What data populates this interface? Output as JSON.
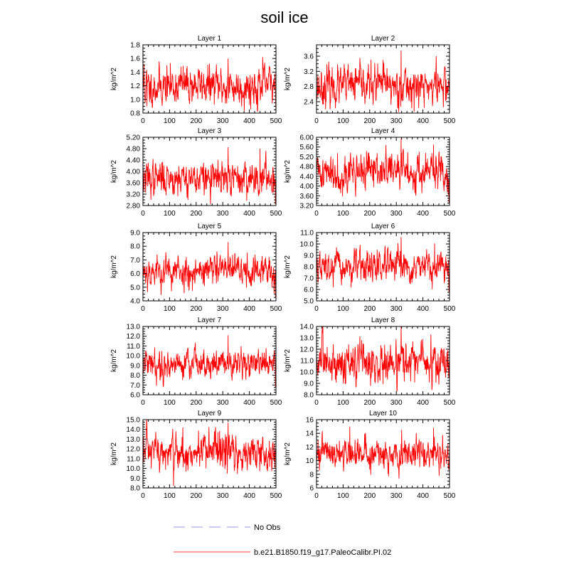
{
  "title": "soil ice",
  "colors": {
    "model": "#ff0000",
    "obs": "#aaaaee",
    "axis": "#000000"
  },
  "legend": [
    {
      "label": "No Obs",
      "style": "dashed",
      "color": "#aaaaee"
    },
    {
      "label": "b.e21.B1850.f19_g17.PaleoCalibr.PI.02",
      "style": "solid",
      "color": "#ff6666"
    }
  ],
  "chart_data": [
    {
      "type": "line",
      "title": "Layer 1",
      "ylabel": "kg/m^2",
      "xlim": [
        0,
        500
      ],
      "xticks": [
        0,
        100,
        200,
        300,
        400,
        500
      ],
      "ylim": [
        0.8,
        1.8
      ],
      "yticks": [
        "0.8",
        "1.0",
        "1.2",
        "1.4",
        "1.6",
        "1.8"
      ],
      "mean": 1.2,
      "amp": 0.14,
      "spikes": [
        [
          4,
          1.52
        ],
        [
          15,
          0.9
        ],
        [
          320,
          1.6
        ],
        [
          450,
          1.62
        ]
      ],
      "series": [
        {
          "name": "b.e21.B1850.f19_g17.PaleoCalibr.PI.02",
          "n": 500,
          "seed": 11
        }
      ]
    },
    {
      "type": "line",
      "title": "Layer 2",
      "ylabel": "kg/m^2",
      "xlim": [
        0,
        500
      ],
      "xticks": [
        0,
        100,
        200,
        300,
        400,
        500
      ],
      "ylim": [
        2.1,
        3.9
      ],
      "yticks": [
        "2.4",
        "2.8",
        "3.2",
        "3.6"
      ],
      "mean": 2.82,
      "amp": 0.25,
      "spikes": [
        [
          318,
          3.75
        ],
        [
          450,
          3.6
        ],
        [
          250,
          3.5
        ]
      ],
      "series": [
        {
          "name": "b.e21.B1850.f19_g17.PaleoCalibr.PI.02",
          "n": 500,
          "seed": 23
        }
      ]
    },
    {
      "type": "line",
      "title": "Layer 3",
      "ylabel": "kg/m^2",
      "xlim": [
        0,
        500
      ],
      "xticks": [
        0,
        100,
        200,
        300,
        400,
        500
      ],
      "ylim": [
        2.8,
        5.2
      ],
      "yticks": [
        "2.80",
        "3.20",
        "3.60",
        "4.00",
        "4.40",
        "4.80",
        "5.20"
      ],
      "mean": 3.75,
      "amp": 0.3,
      "spikes": [
        [
          320,
          4.85
        ],
        [
          440,
          4.8
        ],
        [
          498,
          2.85
        ]
      ],
      "series": [
        {
          "name": "b.e21.B1850.f19_g17.PaleoCalibr.PI.02",
          "n": 500,
          "seed": 37
        }
      ]
    },
    {
      "type": "line",
      "title": "Layer 4",
      "ylabel": "kg/m^2",
      "xlim": [
        0,
        500
      ],
      "xticks": [
        0,
        100,
        200,
        300,
        400,
        500
      ],
      "ylim": [
        3.2,
        6.0
      ],
      "yticks": [
        "3.20",
        "3.60",
        "4.00",
        "4.40",
        "4.80",
        "5.20",
        "5.60",
        "6.00"
      ],
      "mean": 4.6,
      "amp": 0.38,
      "spikes": [
        [
          318,
          5.95
        ],
        [
          440,
          5.7
        ],
        [
          498,
          3.3
        ]
      ],
      "series": [
        {
          "name": "b.e21.B1850.f19_g17.PaleoCalibr.PI.02",
          "n": 500,
          "seed": 41
        }
      ]
    },
    {
      "type": "line",
      "title": "Layer 5",
      "ylabel": "kg/m^2",
      "xlim": [
        0,
        500
      ],
      "xticks": [
        0,
        100,
        200,
        300,
        400,
        500
      ],
      "ylim": [
        4.0,
        9.0
      ],
      "yticks": [
        "4.0",
        "5.0",
        "6.0",
        "7.0",
        "8.0",
        "9.0"
      ],
      "mean": 6.2,
      "amp": 0.6,
      "spikes": [
        [
          320,
          8.3
        ],
        [
          498,
          4.3
        ]
      ],
      "series": [
        {
          "name": "b.e21.B1850.f19_g17.PaleoCalibr.PI.02",
          "n": 500,
          "seed": 53
        }
      ]
    },
    {
      "type": "line",
      "title": "Layer 6",
      "ylabel": "kg/m^2",
      "xlim": [
        0,
        500
      ],
      "xticks": [
        0,
        100,
        200,
        300,
        400,
        500
      ],
      "ylim": [
        5.0,
        11.0
      ],
      "yticks": [
        "5.0",
        "6.0",
        "7.0",
        "8.0",
        "9.0",
        "10.0",
        "11.0"
      ],
      "mean": 7.9,
      "amp": 0.7,
      "spikes": [
        [
          318,
          10.6
        ],
        [
          498,
          5.8
        ]
      ],
      "series": [
        {
          "name": "b.e21.B1850.f19_g17.PaleoCalibr.PI.02",
          "n": 500,
          "seed": 67
        }
      ]
    },
    {
      "type": "line",
      "title": "Layer 7",
      "ylabel": "kg/m^2",
      "xlim": [
        0,
        500
      ],
      "xticks": [
        0,
        100,
        200,
        300,
        400,
        500
      ],
      "ylim": [
        6.0,
        13.0
      ],
      "yticks": [
        "6.0",
        "7.0",
        "8.0",
        "9.0",
        "10.0",
        "11.0",
        "12.0",
        "13.0"
      ],
      "mean": 9.2,
      "amp": 0.75,
      "spikes": [
        [
          320,
          12.1
        ],
        [
          498,
          6.8
        ]
      ],
      "series": [
        {
          "name": "b.e21.B1850.f19_g17.PaleoCalibr.PI.02",
          "n": 500,
          "seed": 79
        }
      ]
    },
    {
      "type": "line",
      "title": "Layer 8",
      "ylabel": "kg/m^2",
      "xlim": [
        0,
        500
      ],
      "xticks": [
        0,
        100,
        200,
        300,
        400,
        500
      ],
      "ylim": [
        8.0,
        14.0
      ],
      "yticks": [
        "8.0",
        "9.0",
        "10.0",
        "11.0",
        "12.0",
        "13.0",
        "14.0"
      ],
      "mean": 10.8,
      "amp": 0.9,
      "spikes": [
        [
          318,
          14.0
        ],
        [
          430,
          13.3
        ]
      ],
      "series": [
        {
          "name": "b.e21.B1850.f19_g17.PaleoCalibr.PI.02",
          "n": 500,
          "seed": 83
        }
      ]
    },
    {
      "type": "line",
      "title": "Layer 9",
      "ylabel": "kg/m^2",
      "xlim": [
        0,
        500
      ],
      "xticks": [
        0,
        100,
        200,
        300,
        400,
        500
      ],
      "ylim": [
        8.0,
        15.0
      ],
      "yticks": [
        "8.0",
        "9.0",
        "10.0",
        "11.0",
        "12.0",
        "13.0",
        "14.0",
        "15.0"
      ],
      "mean": 11.6,
      "amp": 1.0,
      "spikes": [
        [
          320,
          14.7
        ],
        [
          150,
          14.2
        ],
        [
          115,
          8.2
        ]
      ],
      "series": [
        {
          "name": "b.e21.B1850.f19_g17.PaleoCalibr.PI.02",
          "n": 500,
          "seed": 97
        }
      ]
    },
    {
      "type": "line",
      "title": "Layer 10",
      "ylabel": "kg/m^2",
      "xlim": [
        0,
        500
      ],
      "xticks": [
        0,
        100,
        200,
        300,
        400,
        500
      ],
      "ylim": [
        6,
        16
      ],
      "yticks": [
        "6",
        "8",
        "10",
        "12",
        "14",
        "16"
      ],
      "mean": 11.0,
      "amp": 1.1,
      "spikes": [
        [
          125,
          15.0
        ],
        [
          320,
          14.5
        ],
        [
          440,
          14.8
        ]
      ],
      "series": [
        {
          "name": "b.e21.B1850.f19_g17.PaleoCalibr.PI.02",
          "n": 500,
          "seed": 101
        }
      ]
    }
  ]
}
